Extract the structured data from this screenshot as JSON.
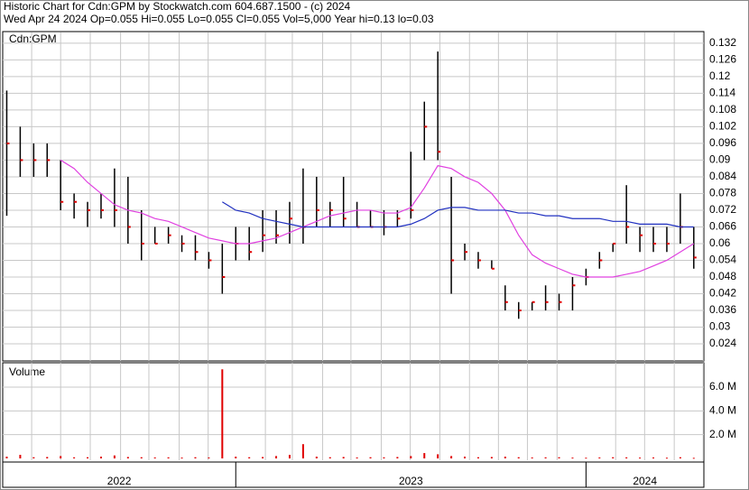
{
  "chart_data": [
    {
      "type": "ohlc",
      "title": "Historic Chart for Cdn:GPM by Stockwatch.com 604.687.1500 - (c) 2024",
      "subtitle": "Wed Apr 24 2024  Op=0.055  Hi=0.055  Lo=0.055  Cl=0.055  Vol=5,000  Year hi=0.13  lo=0.03",
      "label": "Cdn:GPM",
      "x": [
        18,
        20,
        22,
        24,
        26,
        28,
        30,
        32,
        34,
        36,
        38,
        40,
        42,
        44,
        46,
        48,
        50,
        52,
        54,
        56,
        58,
        60,
        62,
        64,
        66,
        68,
        70,
        72,
        74,
        76,
        78,
        80,
        82,
        84,
        86,
        88,
        90,
        92,
        94,
        96,
        98,
        100,
        102,
        104,
        106,
        108,
        110,
        112,
        114,
        116,
        118,
        120
      ],
      "high": [
        0.115,
        0.102,
        0.096,
        0.096,
        0.09,
        0.078,
        0.075,
        0.078,
        0.087,
        0.084,
        0.072,
        0.066,
        0.066,
        0.063,
        0.063,
        0.057,
        0.06,
        0.066,
        0.066,
        0.072,
        0.072,
        0.075,
        0.087,
        0.084,
        0.075,
        0.084,
        0.075,
        0.072,
        0.072,
        0.072,
        0.093,
        0.111,
        0.129,
        0.084,
        0.06,
        0.057,
        0.054,
        0.045,
        0.039,
        0.039,
        0.045,
        0.042,
        0.048,
        0.051,
        0.057,
        0.06,
        0.081,
        0.066,
        0.066,
        0.066,
        0.078,
        0.066
      ],
      "low": [
        0.07,
        0.084,
        0.084,
        0.084,
        0.072,
        0.069,
        0.066,
        0.069,
        0.066,
        0.06,
        0.054,
        0.06,
        0.06,
        0.057,
        0.054,
        0.051,
        0.042,
        0.054,
        0.054,
        0.057,
        0.06,
        0.06,
        0.06,
        0.066,
        0.066,
        0.066,
        0.066,
        0.066,
        0.063,
        0.066,
        0.069,
        0.09,
        0.09,
        0.042,
        0.054,
        0.051,
        0.051,
        0.036,
        0.033,
        0.036,
        0.036,
        0.036,
        0.036,
        0.045,
        0.051,
        0.057,
        0.06,
        0.057,
        0.057,
        0.057,
        0.06,
        0.051
      ],
      "close": [
        0.096,
        0.09,
        0.09,
        0.09,
        0.075,
        0.075,
        0.072,
        0.072,
        0.072,
        0.066,
        0.06,
        0.06,
        0.063,
        0.06,
        0.057,
        0.054,
        0.048,
        0.06,
        0.057,
        0.063,
        0.063,
        0.069,
        0.066,
        0.072,
        0.072,
        0.069,
        0.066,
        0.066,
        0.066,
        0.069,
        0.072,
        0.102,
        0.093,
        0.054,
        0.057,
        0.054,
        0.051,
        0.039,
        0.036,
        0.039,
        0.039,
        0.039,
        0.045,
        0.048,
        0.054,
        0.06,
        0.066,
        0.063,
        0.06,
        0.06,
        0.066,
        0.055
      ],
      "bar_color": "#000000",
      "close_color": "#e00000",
      "series": [
        {
          "color": "#e040e0",
          "values": [
            null,
            null,
            null,
            null,
            0.09,
            0.087,
            0.082,
            0.078,
            0.074,
            0.072,
            0.071,
            0.069,
            0.068,
            0.066,
            0.064,
            0.062,
            0.061,
            0.06,
            0.06,
            0.061,
            0.062,
            0.064,
            0.066,
            0.068,
            0.07,
            0.071,
            0.072,
            0.072,
            0.071,
            0.071,
            0.073,
            0.08,
            0.088,
            0.087,
            0.084,
            0.082,
            0.078,
            0.072,
            0.063,
            0.056,
            0.053,
            0.051,
            0.049,
            0.048,
            0.048,
            0.048,
            0.049,
            0.05,
            0.052,
            0.054,
            0.057,
            0.06
          ]
        },
        {
          "color": "#2030c0",
          "values": [
            null,
            null,
            null,
            null,
            null,
            null,
            null,
            null,
            null,
            null,
            null,
            null,
            null,
            null,
            null,
            null,
            0.075,
            0.072,
            0.071,
            0.069,
            0.068,
            0.067,
            0.066,
            0.066,
            0.066,
            0.066,
            0.066,
            0.066,
            0.066,
            0.066,
            0.067,
            0.069,
            0.072,
            0.073,
            0.073,
            0.072,
            0.072,
            0.072,
            0.071,
            0.071,
            0.07,
            0.07,
            0.069,
            0.069,
            0.069,
            0.068,
            0.068,
            0.067,
            0.067,
            0.067,
            0.066,
            0.066
          ]
        }
      ],
      "xlim": [
        17.4,
        121.5
      ],
      "xticks": [
        {
          "value": 0,
          "label": "2022"
        },
        {
          "value": 52,
          "label": "2023"
        },
        {
          "value": 104,
          "label": "2024"
        }
      ],
      "minor_xticks": [
        21.7,
        26,
        30.4,
        34.9,
        39.1,
        43.6,
        47.9,
        56.4,
        60.4,
        64.9,
        69.1,
        73.6,
        77.9,
        82.3,
        86.7,
        91,
        95.3,
        99.7,
        108.4,
        112.7,
        117.1,
        121.4
      ],
      "ylim": [
        0.0185,
        0.1352
      ],
      "yticks": [
        0.024,
        0.03,
        0.036,
        0.042,
        0.048,
        0.054,
        0.06,
        0.066,
        0.072,
        0.078,
        0.084,
        0.09,
        0.096,
        0.102,
        0.108,
        0.114,
        0.12,
        0.126,
        0.132
      ],
      "grid": true
    },
    {
      "type": "bar",
      "label": "Volume",
      "x": [
        18,
        20,
        22,
        24,
        26,
        28,
        30,
        32,
        34,
        36,
        38,
        40,
        42,
        44,
        46,
        48,
        50,
        52,
        54,
        56,
        58,
        60,
        62,
        64,
        66,
        68,
        70,
        72,
        74,
        76,
        78,
        80,
        82,
        84,
        86,
        88,
        90,
        92,
        94,
        96,
        98,
        100,
        102,
        104,
        106,
        108,
        110,
        112,
        114,
        116,
        118,
        120
      ],
      "values": [
        150000,
        300000,
        100000,
        120000,
        200000,
        90000,
        100000,
        150000,
        250000,
        120000,
        100000,
        80000,
        90000,
        70000,
        100000,
        80000,
        7500000,
        150000,
        100000,
        120000,
        200000,
        300000,
        1200000,
        150000,
        100000,
        120000,
        80000,
        100000,
        90000,
        120000,
        200000,
        450000,
        350000,
        200000,
        150000,
        100000,
        120000,
        150000,
        100000,
        80000,
        90000,
        100000,
        70000,
        60000,
        80000,
        100000,
        90000,
        70000,
        80000,
        60000,
        100000,
        50000
      ],
      "color": "#e00000",
      "ylim": [
        0,
        7900000
      ],
      "yticks": [
        {
          "value": 2000000,
          "label": "2.0 M"
        },
        {
          "value": 4000000,
          "label": "4.0 M"
        },
        {
          "value": 6000000,
          "label": "6.0 M"
        }
      ],
      "grid": true
    }
  ]
}
